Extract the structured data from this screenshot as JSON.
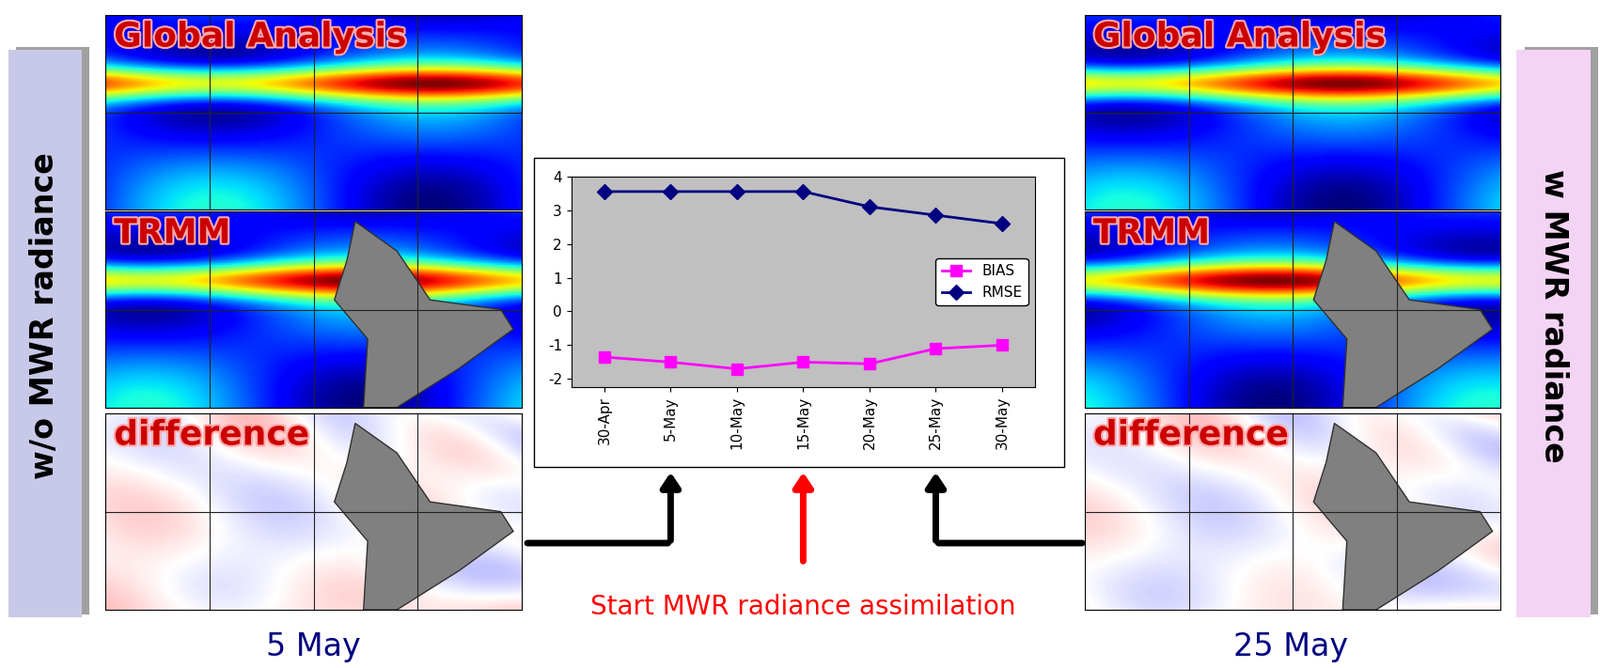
{
  "chart_data": {
    "type": "line",
    "categories": [
      "30-Apr",
      "5-May",
      "10-May",
      "15-May",
      "20-May",
      "25-May",
      "30-May"
    ],
    "series": [
      {
        "name": "BIAS",
        "color": "#ff00ff",
        "marker": "square",
        "values": [
          -1.35,
          -1.5,
          -1.7,
          -1.5,
          -1.55,
          -1.1,
          -1.0
        ]
      },
      {
        "name": "RMSE",
        "color": "#000080",
        "marker": "diamond",
        "values": [
          3.55,
          3.55,
          3.55,
          3.55,
          3.1,
          2.85,
          2.6
        ]
      }
    ],
    "ylim": [
      -2.25,
      4
    ],
    "yticks": [
      -2,
      -1,
      0,
      1,
      2,
      3,
      4
    ],
    "legend": "center right",
    "grid": false
  },
  "panels": [
    {
      "side_label": "w/o MWR radiance",
      "date": "5 May",
      "points_to": "5-May",
      "maps": [
        "Global Analysis",
        "TRMM",
        "difference"
      ]
    },
    {
      "side_label": "w MWR radiance",
      "date": "25 May",
      "points_to": "25-May",
      "maps": [
        "Global Analysis",
        "TRMM",
        "difference"
      ]
    }
  ],
  "annotation": {
    "text": "Start MWR radiance assimilation",
    "points_to": "15-May"
  }
}
